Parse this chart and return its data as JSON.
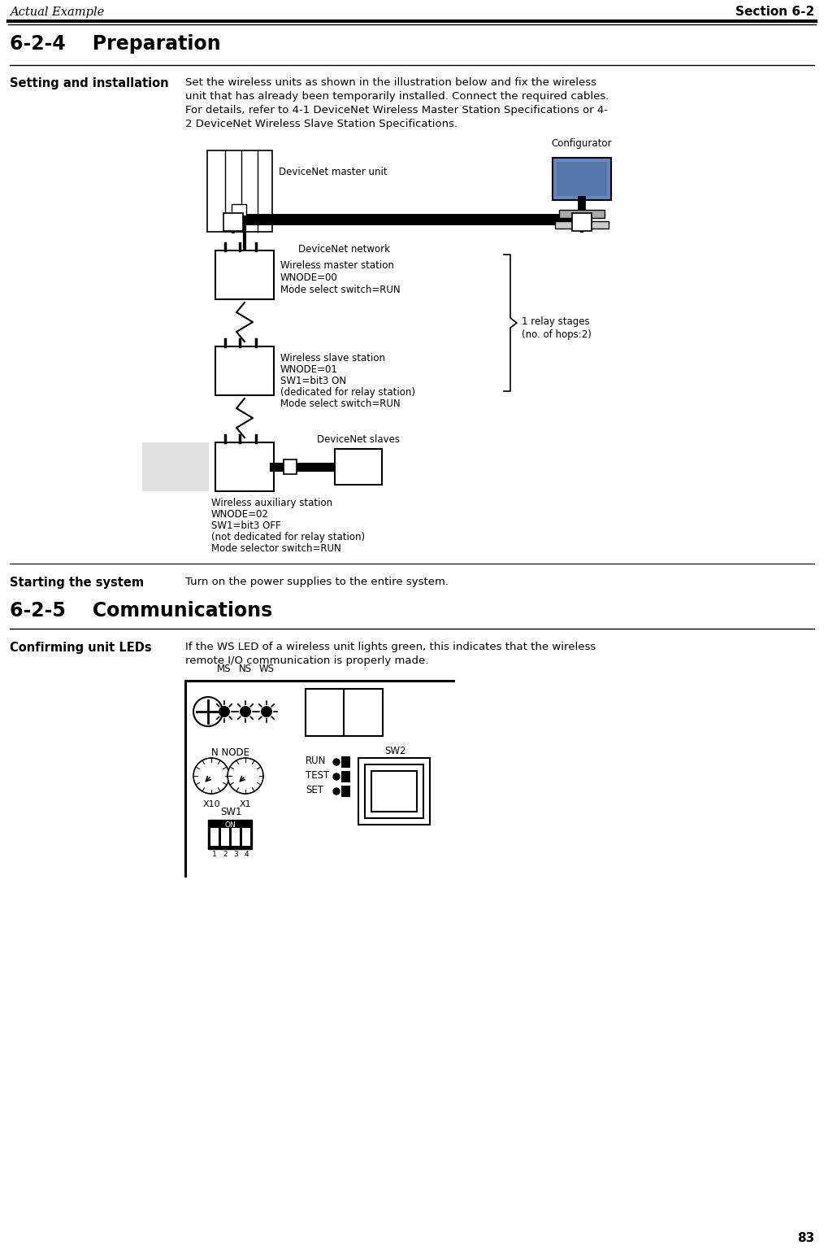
{
  "page_num": "83",
  "header_left": "Actual Example",
  "header_right": "Section 6-2",
  "section_title": "6-2-4    Preparation",
  "label_setting": "Setting and installation",
  "text_setting_lines": [
    "Set the wireless units as shown in the illustration below and fix the wireless",
    "unit that has already been temporarily installed. Connect the required cables.",
    "For details, refer to 4-1 DeviceNet Wireless Master Station Specifications or 4-",
    "2 DeviceNet Wireless Slave Station Specifications."
  ],
  "label_starting": "Starting the system",
  "text_starting": "Turn on the power supplies to the entire system.",
  "section_title2": "6-2-5    Communications",
  "label_confirming": "Confirming unit LEDs",
  "text_confirming_lines": [
    "If the WS LED of a wireless unit lights green, this indicates that the wireless",
    "remote I/O communication is properly made."
  ],
  "bg_color": "#ffffff",
  "text_color": "#000000"
}
